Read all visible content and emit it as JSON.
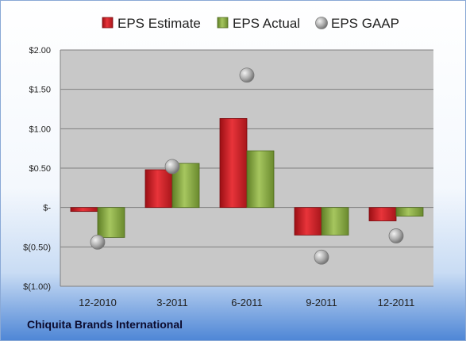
{
  "company": "Chiquita Brands International",
  "colors": {
    "estimate": "#d9262c",
    "actual": "#8fb04a",
    "gaap": "#a8a8a8",
    "plot_bg": "#c8c8c8"
  },
  "chart_data": {
    "type": "bar",
    "categories": [
      "12-2010",
      "3-2011",
      "6-2011",
      "9-2011",
      "12-2011"
    ],
    "series": [
      {
        "name": "EPS Estimate",
        "kind": "bar",
        "values": [
          -0.05,
          0.48,
          1.13,
          -0.35,
          -0.17
        ]
      },
      {
        "name": "EPS Actual",
        "kind": "bar",
        "values": [
          -0.38,
          0.56,
          0.72,
          -0.35,
          -0.11
        ]
      },
      {
        "name": "EPS GAAP",
        "kind": "marker",
        "values": [
          -0.44,
          0.52,
          1.68,
          -0.63,
          -0.36
        ]
      }
    ],
    "y_ticks": [
      2.0,
      1.5,
      1.0,
      0.5,
      0,
      -0.5,
      -1.0
    ],
    "y_tick_labels": [
      "$2.00",
      "$1.50",
      "$1.00",
      "$0.50",
      "$-",
      "$(0.50)",
      "$(1.00)"
    ],
    "ylim": [
      -1.0,
      2.0
    ],
    "legend_position": "top",
    "grid": true
  }
}
